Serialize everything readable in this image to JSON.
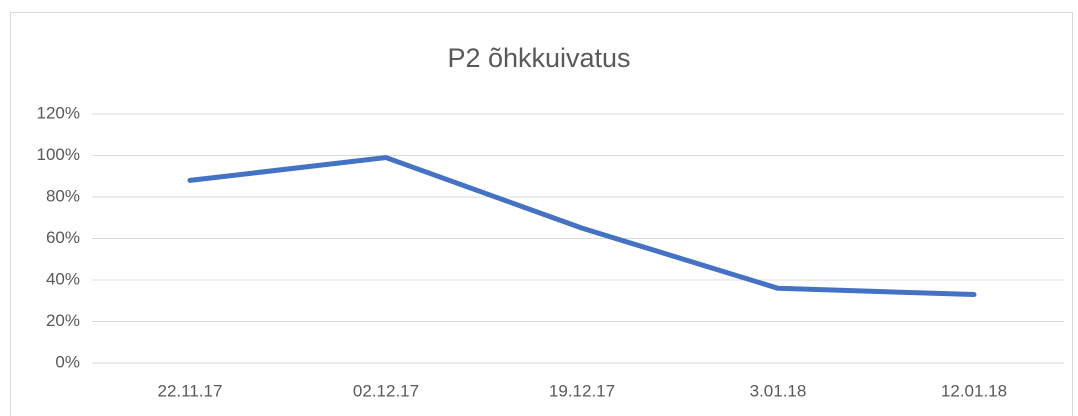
{
  "chart_data": {
    "type": "line",
    "title": "P2 õhkkuivatus",
    "categories": [
      "22.11.17",
      "02.12.17",
      "19.12.17",
      "3.01.18",
      "12.01.18"
    ],
    "values": [
      88,
      99,
      65,
      36,
      33
    ],
    "color": "#4472c4",
    "ylim": [
      0,
      120
    ],
    "yticks": [
      {
        "value": 0,
        "label": "0%"
      },
      {
        "value": 20,
        "label": "20%"
      },
      {
        "value": 40,
        "label": "40%"
      },
      {
        "value": 60,
        "label": "60%"
      },
      {
        "value": 80,
        "label": "80%"
      },
      {
        "value": 100,
        "label": "100%"
      },
      {
        "value": 120,
        "label": "120%"
      }
    ],
    "grid": true
  }
}
